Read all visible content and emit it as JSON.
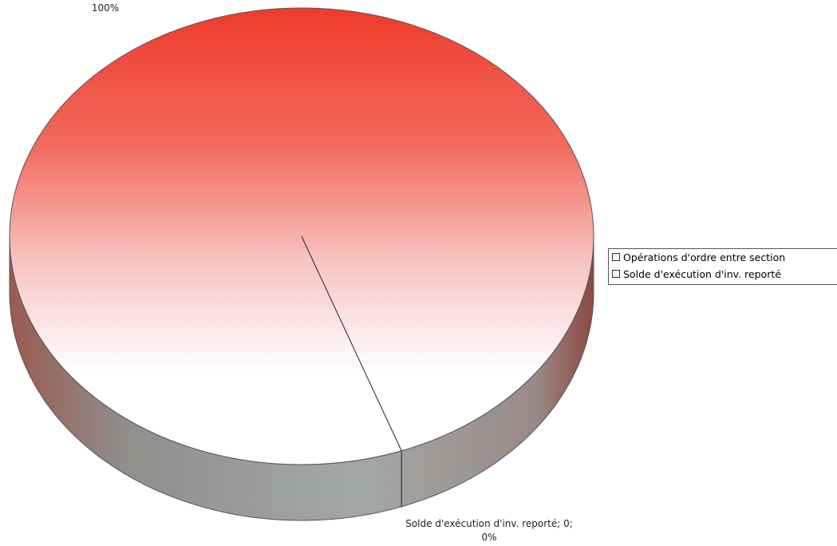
{
  "chart_data": {
    "type": "pie",
    "categories": [
      "Opérations d'ordre entre section",
      "Solde d'exécution d'inv. reporté"
    ],
    "values": [
      100,
      0
    ],
    "value_labels": [
      "100%",
      "Solde d'exécution d'inv. reporté; 0; 0%"
    ],
    "legend": "right"
  }
}
